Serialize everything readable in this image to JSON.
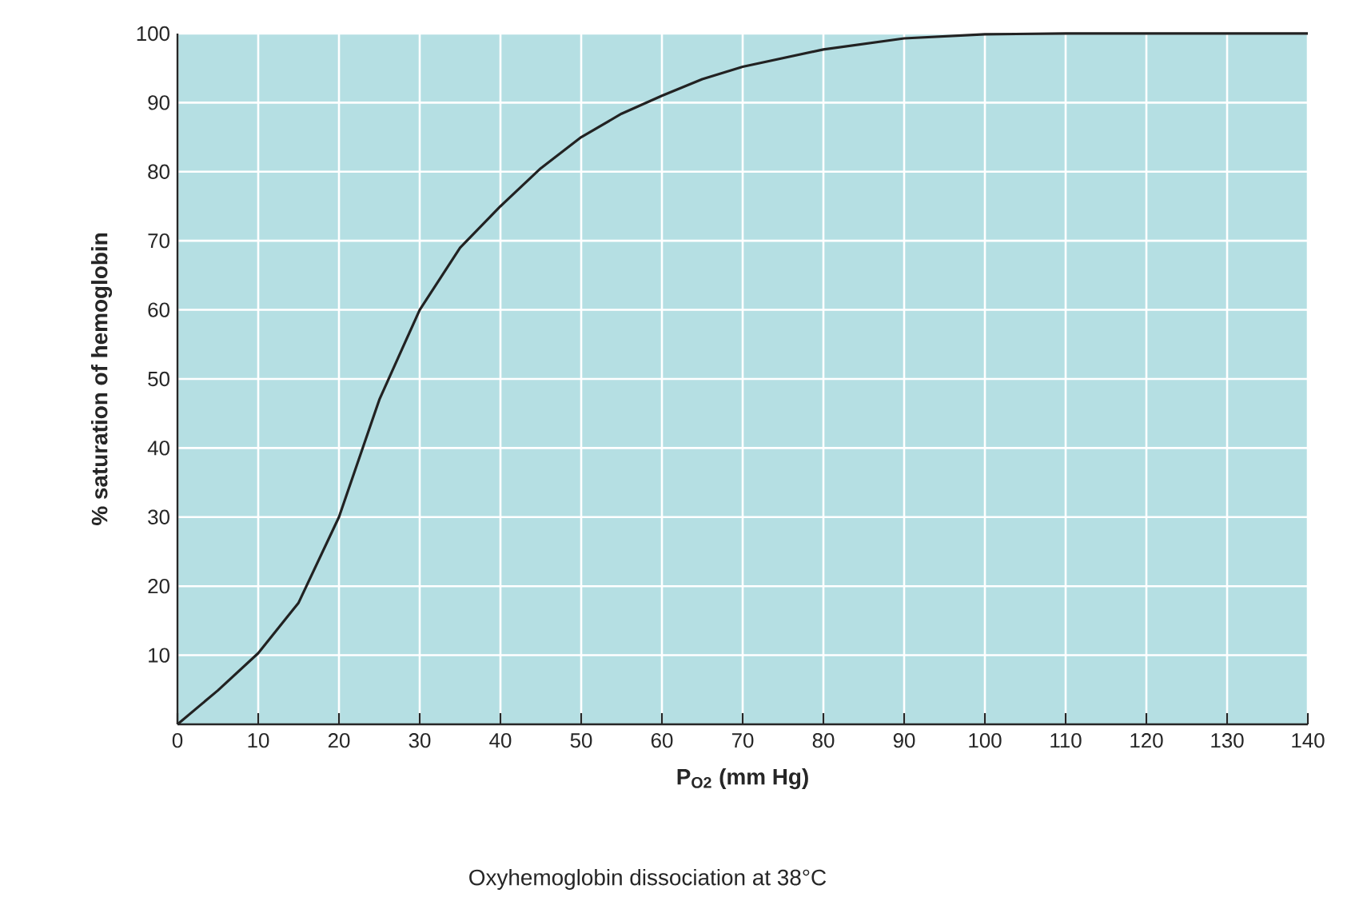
{
  "chart_data": {
    "type": "line",
    "xlabel": "P$_{O2}$ (mm Hg)",
    "ylabel": "% saturation of hemoglobin",
    "annotations": [
      "Oxyhemoglobin dissociation at 38°C"
    ],
    "series": [
      {
        "color": "#222222",
        "x": [
          0,
          5,
          10,
          15,
          20,
          25,
          30,
          35,
          40,
          45,
          50,
          55,
          60,
          65,
          70,
          80,
          90,
          100,
          110,
          120,
          130,
          140
        ],
        "values": [
          0,
          4.9,
          10.3,
          17.6,
          30,
          47,
          60,
          69,
          75,
          80.5,
          85,
          88.4,
          91,
          93.4,
          95.2,
          97.7,
          99.3,
          99.9,
          100,
          100,
          100,
          100
        ]
      }
    ],
    "xlim": [
      0,
      140
    ],
    "ylim": [
      0,
      100
    ],
    "xticks": [
      0,
      10,
      20,
      30,
      40,
      50,
      60,
      70,
      80,
      90,
      100,
      110,
      120,
      130,
      140
    ],
    "yticks": [
      10,
      20,
      30,
      40,
      50,
      60,
      70,
      80,
      90,
      100
    ],
    "grid": true,
    "marker": "none",
    "line_style": "solid"
  }
}
